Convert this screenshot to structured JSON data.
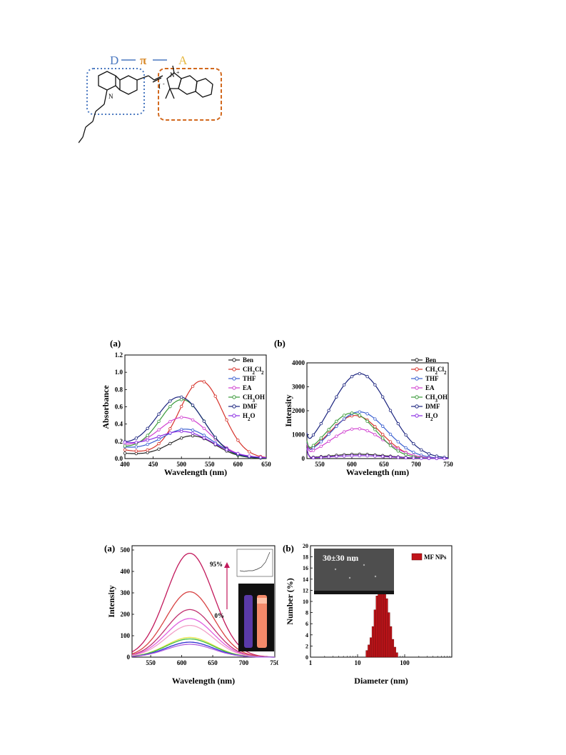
{
  "scheme": {
    "label_d": "D",
    "label_pi": "π",
    "label_a": "A",
    "atom_n_donor": "N",
    "atom_n_acceptor": "N",
    "plus": "+",
    "iodide": "I",
    "minus": "-",
    "colors": {
      "donor": "#4a78c0",
      "pi": "#d98a2a",
      "acceptor": "#e6b840",
      "dash": "#4a78c0",
      "box_acceptor": "#d2691e"
    }
  },
  "figure1": {
    "panel_a": {
      "label": "(a)",
      "legend_labels": [
        "Ben",
        "CH2Cl2",
        "THF",
        "EA",
        "CH3OH",
        "DMF",
        "H2O"
      ],
      "chart_data": {
        "type": "line",
        "xlabel": "Wavelength (nm)",
        "ylabel": "Absorbance",
        "xlim": [
          400,
          650
        ],
        "ylim": [
          0,
          1.2
        ],
        "xticks": [
          400,
          450,
          500,
          550,
          600,
          650
        ],
        "yticks": [
          0.0,
          0.2,
          0.4,
          0.6,
          0.8,
          1.0,
          1.2
        ],
        "series": [
          {
            "name": "Ben",
            "color": "#222222",
            "peak_x": 520,
            "peak_y": 0.25,
            "base": 0.06,
            "width": 40
          },
          {
            "name": "CH2Cl2",
            "color": "#d6322a",
            "peak_x": 535,
            "peak_y": 0.88,
            "base": 0.1,
            "width": 38
          },
          {
            "name": "THF",
            "color": "#3a5fd0",
            "peak_x": 510,
            "peak_y": 0.31,
            "base": 0.12,
            "width": 45
          },
          {
            "name": "EA",
            "color": "#d040d0",
            "peak_x": 505,
            "peak_y": 0.44,
            "base": 0.14,
            "width": 45
          },
          {
            "name": "CH3OH",
            "color": "#3a9a3a",
            "peak_x": 502,
            "peak_y": 0.65,
            "base": 0.12,
            "width": 40
          },
          {
            "name": "DMF",
            "color": "#1a237e",
            "peak_x": 498,
            "peak_y": 0.67,
            "base": 0.15,
            "width": 42
          },
          {
            "name": "H2O",
            "color": "#8a2be2",
            "peak_x": 505,
            "peak_y": 0.27,
            "base": 0.16,
            "width": 50
          }
        ]
      }
    },
    "panel_b": {
      "label": "(b)",
      "legend_labels": [
        "Ben",
        "CH2Cl2",
        "THF",
        "EA",
        "CH3OH",
        "DMF",
        "H2O"
      ],
      "chart_data": {
        "type": "line",
        "xlabel": "Wavelength (nm)",
        "ylabel": "Intensity",
        "xlim": [
          530,
          750
        ],
        "ylim": [
          0,
          4000
        ],
        "xticks": [
          550,
          600,
          650,
          700,
          750
        ],
        "yticks": [
          0,
          1000,
          2000,
          3000,
          4000
        ],
        "series": [
          {
            "name": "Ben",
            "color": "#222222",
            "peak_x": 610,
            "peak_y": 180,
            "width": 45
          },
          {
            "name": "CH2Cl2",
            "color": "#d6322a",
            "peak_x": 605,
            "peak_y": 1800,
            "width": 40
          },
          {
            "name": "THF",
            "color": "#3a5fd0",
            "peak_x": 612,
            "peak_y": 1950,
            "width": 42
          },
          {
            "name": "EA",
            "color": "#d040d0",
            "peak_x": 608,
            "peak_y": 1250,
            "width": 42
          },
          {
            "name": "CH3OH",
            "color": "#3a9a3a",
            "peak_x": 600,
            "peak_y": 1900,
            "width": 38
          },
          {
            "name": "DMF",
            "color": "#1a237e",
            "peak_x": 612,
            "peak_y": 3550,
            "width": 45
          },
          {
            "name": "H2O",
            "color": "#8a2be2",
            "peak_x": 612,
            "peak_y": 120,
            "width": 45
          }
        ]
      }
    }
  },
  "figure2": {
    "panel_a": {
      "label": "(a)",
      "arrow_top": "95%",
      "arrow_bottom": "0%",
      "chart_data": {
        "type": "line",
        "xlabel": "Wavelength (nm)",
        "ylabel": "Intensity",
        "xlim": [
          520,
          750
        ],
        "ylim": [
          0,
          520
        ],
        "xticks": [
          550,
          600,
          650,
          700,
          750
        ],
        "yticks": [
          0,
          100,
          200,
          300,
          400,
          500
        ],
        "peak_x": 613,
        "width": 38,
        "series": [
          {
            "color": "#c2185b",
            "peak_y": 485
          },
          {
            "color": "#d84343",
            "peak_y": 305
          },
          {
            "color": "#c0306f",
            "peak_y": 222
          },
          {
            "color": "#e060e0",
            "peak_y": 180
          },
          {
            "color": "#f2a0c8",
            "peak_y": 148
          },
          {
            "color": "#e4e44a",
            "peak_y": 92
          },
          {
            "color": "#40c040",
            "peak_y": 85
          },
          {
            "color": "#3030d0",
            "peak_y": 70
          },
          {
            "color": "#b060e0",
            "peak_y": 60
          }
        ]
      }
    },
    "panel_b": {
      "label": "(b)",
      "inset_text": "30±30 nm",
      "legend_label": "MF NPs",
      "chart_data": {
        "type": "bar",
        "xlabel": "Diameter (nm)",
        "ylabel": "Number (%)",
        "xscale": "log",
        "xlim": [
          1,
          1000
        ],
        "ylim": [
          0,
          20
        ],
        "xtick_labels": [
          "1",
          "10",
          "100"
        ],
        "yticks": [
          0,
          2,
          4,
          6,
          8,
          10,
          12,
          14,
          16,
          18,
          20
        ],
        "bar_color": "#c0141a",
        "x": [
          15.7,
          17.3,
          19.1,
          21.1,
          23.3,
          25.7,
          28.3,
          31.2,
          34.4,
          38.0,
          41.9,
          46.2,
          51.0,
          56.3,
          62.1,
          68.5
        ],
        "values": [
          1.2,
          2.2,
          3.5,
          5.5,
          8.5,
          11.0,
          13.8,
          15.6,
          14.8,
          12.8,
          10.5,
          8.0,
          5.5,
          3.2,
          1.8,
          0.8
        ]
      }
    }
  }
}
